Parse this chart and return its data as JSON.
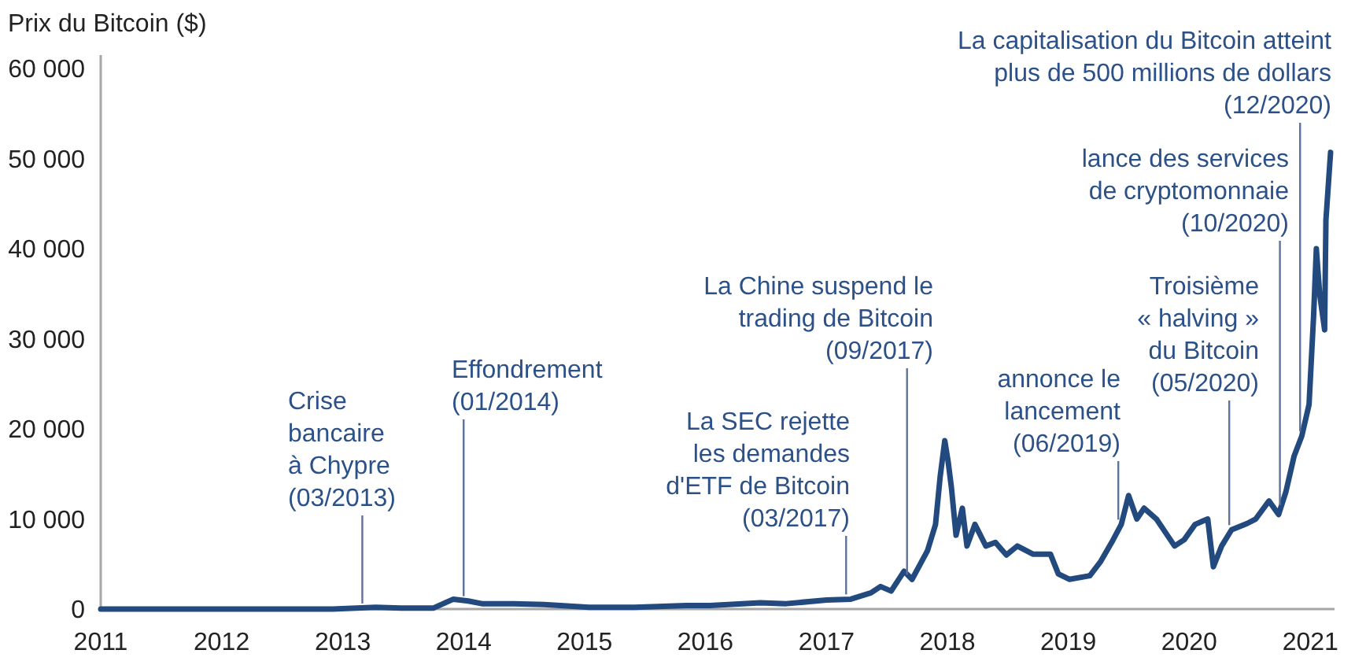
{
  "chart_data": {
    "type": "line",
    "ylabel": "Prix du Bitcoin ($)",
    "x": [
      "2011-01-01",
      "2011-06-08",
      "2011-12-01",
      "2012-06-01",
      "2012-12-01",
      "2013-04-10",
      "2013-07-05",
      "2013-10-01",
      "2013-12-01",
      "2014-01-15",
      "2014-02-25",
      "2014-06-01",
      "2014-09-01",
      "2015-01-15",
      "2015-06-01",
      "2015-11-05",
      "2016-01-15",
      "2016-06-15",
      "2016-09-01",
      "2017-01-01",
      "2017-03-15",
      "2017-05-15",
      "2017-06-13",
      "2017-07-15",
      "2017-08-23",
      "2017-09-16",
      "2017-11-02",
      "2017-11-26",
      "2017-12-10",
      "2017-12-24",
      "2018-01-03",
      "2018-01-13",
      "2018-01-27",
      "2018-02-15",
      "2018-03-01",
      "2018-03-25",
      "2018-04-27",
      "2018-05-26",
      "2018-06-28",
      "2018-07-31",
      "2018-09-16",
      "2018-11-08",
      "2018-12-02",
      "2019-01-04",
      "2019-03-07",
      "2019-04-09",
      "2019-05-12",
      "2019-06-10",
      "2019-07-02",
      "2019-07-27",
      "2019-08-18",
      "2019-09-24",
      "2019-10-27",
      "2019-11-18",
      "2019-12-17",
      "2020-01-19",
      "2020-02-26",
      "2020-03-14",
      "2020-04-08",
      "2020-05-08",
      "2020-06-24",
      "2020-07-20",
      "2020-08-29",
      "2020-09-27",
      "2020-10-19",
      "2020-11-13",
      "2020-12-06",
      "2020-12-28",
      "2021-01-11",
      "2021-01-19",
      "2021-01-29",
      "2021-02-13",
      "2021-02-17",
      "2021-03-03"
    ],
    "values": [
      0,
      0,
      0,
      0,
      0,
      200,
      100,
      100,
      1100,
      900,
      600,
      600,
      500,
      200,
      200,
      400,
      400,
      700,
      600,
      1000,
      1100,
      1800,
      2500,
      2000,
      4200,
      3300,
      6500,
      9400,
      14700,
      18700,
      16400,
      13500,
      8200,
      11200,
      7000,
      9400,
      7000,
      7400,
      6000,
      7000,
      6100,
      6100,
      3900,
      3300,
      3700,
      5300,
      7400,
      9400,
      12600,
      10000,
      11200,
      10000,
      8200,
      7000,
      7700,
      9400,
      10000,
      4700,
      7000,
      8800,
      9500,
      10000,
      12000,
      10500,
      13000,
      17000,
      19200,
      22700,
      32700,
      40000,
      35000,
      31000,
      43200,
      50700
    ],
    "color": "#234a7e",
    "xlim": [
      "2011-01-01",
      "2021-03-15"
    ],
    "xticks": [
      "2011",
      "2012",
      "2013",
      "2014",
      "2015",
      "2016",
      "2017",
      "2018",
      "2019",
      "2020",
      "2021"
    ],
    "ylim": [
      0,
      61500
    ],
    "yticks": [
      0,
      {
        "value": 10000,
        "label": "10 000"
      },
      {
        "value": 20000,
        "label": "20 000"
      },
      {
        "value": 30000,
        "label": "30 000"
      },
      {
        "value": 40000,
        "label": "40 000"
      },
      {
        "value": 50000,
        "label": "50 000"
      },
      {
        "value": 60000,
        "label": "60 000"
      }
    ],
    "annotations": [
      {
        "text": "Crise\nbancaire\nà Chypre\n(03/2013)",
        "x": "2013-03",
        "y": 100
      },
      {
        "text": "Effondrement\n(01/2014)",
        "x": "2014-01",
        "y": 900
      },
      {
        "text": "La SEC rejette\nles demandes\nd'ETF de Bitcoin\n(03/2017)",
        "x": "2017-03",
        "y": 1100
      },
      {
        "text": "La Chine suspend le\ntrading de Bitcoin\n(09/2017)",
        "x": "2017-09",
        "y": 3300
      },
      {
        "text": "annonce le\nlancement\n(06/2019)",
        "x": "2019-06",
        "y": 9400
      },
      {
        "text": "Troisième\n« halving »\ndu Bitcoin\n(05/2020)",
        "x": "2020-05",
        "y": 8800
      },
      {
        "text": "lance des services\nde cryptomonnaie\n(10/2020)",
        "x": "2020-10",
        "y": 11000
      },
      {
        "text": "La capitalisation du Bitcoin atteint\nplus de 500 millions de dollars\n(12/2020)",
        "x": "2020-12",
        "y": 19200
      }
    ]
  }
}
